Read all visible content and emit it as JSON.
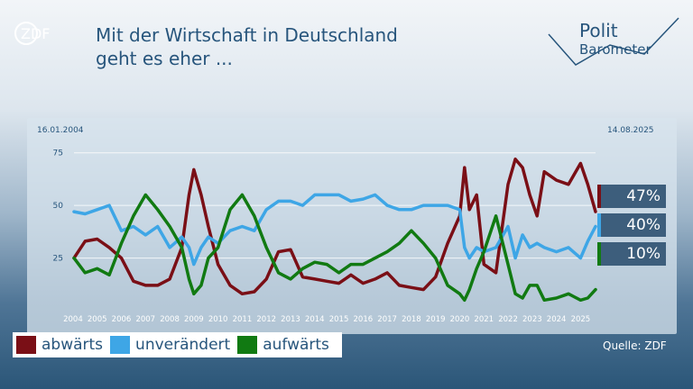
{
  "header": {
    "broadcaster": "ZDF",
    "title_line1": "Mit der Wirtschaft in Deutschland",
    "title_line2": "geht es eher ...",
    "brand_line1": "Polit",
    "brand_line2": "Barometer"
  },
  "dates": {
    "start": "16.01.2004",
    "end": "14.08.2025"
  },
  "source": "Quelle: ZDF",
  "colors": {
    "abwaerts": "#7a0f16",
    "unveraendert": "#3ea6e6",
    "aufwaerts": "#117a12",
    "accent": "#27557c"
  },
  "latest": [
    {
      "series": "abwärts",
      "label": "47%",
      "color": "#7a0f16"
    },
    {
      "series": "unverändert",
      "label": "40%",
      "color": "#3ea6e6"
    },
    {
      "series": "aufwärts",
      "label": "10%",
      "color": "#117a12"
    }
  ],
  "legend": [
    {
      "label": "abwärts",
      "color": "#7a0f16"
    },
    {
      "label": "unverändert",
      "color": "#3ea6e6"
    },
    {
      "label": "aufwärts",
      "color": "#117a12"
    }
  ],
  "chart_data": {
    "type": "line",
    "title": "Mit der Wirtschaft in Deutschland geht es eher ...",
    "xlabel": "",
    "ylabel": "",
    "x_ticks": [
      "2004",
      "2005",
      "2006",
      "2007",
      "2008",
      "2009",
      "2010",
      "2011",
      "2012",
      "2013",
      "2014",
      "2015",
      "2016",
      "2017",
      "2018",
      "2019",
      "2020",
      "2021",
      "2022",
      "2023",
      "2024",
      "2025"
    ],
    "y_ticks": [
      25,
      50,
      75
    ],
    "xlim": [
      2004.04,
      2025.62
    ],
    "ylim": [
      0,
      80
    ],
    "grid": "horizontal",
    "legend_position": "bottom-left",
    "x": [
      2004.04,
      2004.5,
      2005.0,
      2005.5,
      2006.0,
      2006.5,
      2007.0,
      2007.5,
      2008.0,
      2008.5,
      2008.8,
      2009.0,
      2009.3,
      2009.6,
      2010.0,
      2010.5,
      2011.0,
      2011.5,
      2012.0,
      2012.5,
      2013.0,
      2013.5,
      2014.0,
      2014.5,
      2015.0,
      2015.5,
      2016.0,
      2016.5,
      2017.0,
      2017.5,
      2018.0,
      2018.5,
      2019.0,
      2019.5,
      2020.0,
      2020.2,
      2020.4,
      2020.7,
      2021.0,
      2021.5,
      2022.0,
      2022.3,
      2022.6,
      2022.9,
      2023.2,
      2023.5,
      2024.0,
      2024.5,
      2025.0,
      2025.3,
      2025.62
    ],
    "series": [
      {
        "name": "abwärts",
        "values": [
          25,
          33,
          34,
          30,
          25,
          14,
          12,
          12,
          15,
          30,
          55,
          67,
          55,
          40,
          22,
          12,
          8,
          9,
          15,
          28,
          29,
          16,
          15,
          14,
          13,
          17,
          13,
          15,
          18,
          12,
          11,
          10,
          16,
          32,
          45,
          68,
          48,
          55,
          22,
          18,
          60,
          72,
          68,
          55,
          45,
          66,
          62,
          60,
          70,
          60,
          47
        ]
      },
      {
        "name": "unverändert",
        "values": [
          47,
          46,
          48,
          50,
          38,
          40,
          36,
          40,
          30,
          35,
          30,
          22,
          30,
          35,
          32,
          38,
          40,
          38,
          48,
          52,
          52,
          50,
          55,
          55,
          55,
          52,
          53,
          55,
          50,
          48,
          48,
          50,
          50,
          50,
          48,
          30,
          25,
          30,
          28,
          30,
          40,
          25,
          36,
          30,
          32,
          30,
          28,
          30,
          25,
          33,
          40
        ]
      },
      {
        "name": "aufwärts",
        "values": [
          25,
          18,
          20,
          17,
          32,
          45,
          55,
          48,
          40,
          30,
          15,
          8,
          12,
          25,
          30,
          48,
          55,
          45,
          30,
          18,
          15,
          20,
          23,
          22,
          18,
          22,
          22,
          25,
          28,
          32,
          38,
          32,
          25,
          12,
          8,
          5,
          10,
          20,
          28,
          45,
          22,
          8,
          6,
          12,
          12,
          5,
          6,
          8,
          5,
          6,
          10
        ]
      }
    ]
  }
}
